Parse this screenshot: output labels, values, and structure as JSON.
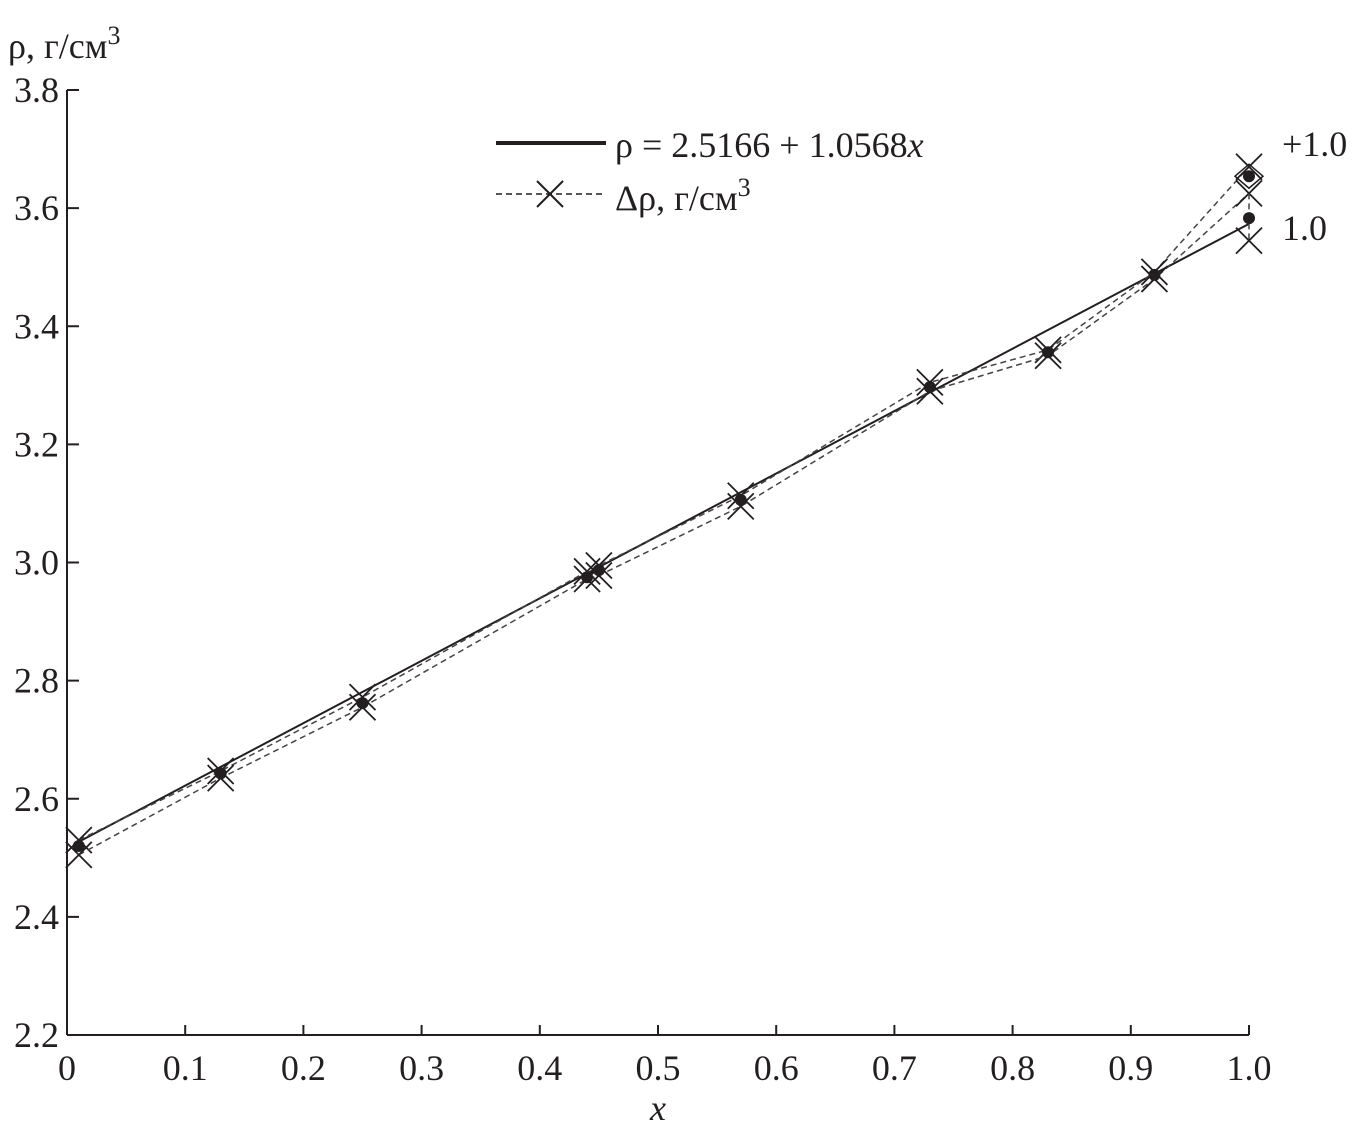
{
  "chart_data": {
    "type": "line",
    "ylabel": "ρ, г/см",
    "ylabel_sup": "3",
    "xlabel": "x",
    "xlim": [
      0,
      1.0
    ],
    "ylim": [
      2.2,
      3.8
    ],
    "xticks": [
      "0",
      "0.1",
      "0.2",
      "0.3",
      "0.4",
      "0.5",
      "0.6",
      "0.7",
      "0.8",
      "0.9",
      "1.0"
    ],
    "yticks": [
      "2.2",
      "2.4",
      "2.6",
      "2.8",
      "3.0",
      "3.2",
      "3.4",
      "3.6",
      "3.8"
    ],
    "grid": false,
    "legend_position": "top-center",
    "legend": {
      "fit_label_prefix": "ρ = 2.5166 + 1.0568",
      "fit_label_var": "x",
      "delta_label": "Δρ, г/см",
      "delta_label_sup": "3"
    },
    "fit": {
      "intercept": 2.5166,
      "slope": 1.0568,
      "x_range": [
        0.01,
        1.0
      ]
    },
    "points": {
      "x": [
        0.01,
        0.13,
        0.25,
        0.44,
        0.45,
        0.57,
        0.73,
        0.83,
        0.92,
        1.0,
        1.0
      ],
      "y": [
        2.52,
        2.643,
        2.762,
        2.975,
        2.987,
        3.106,
        3.297,
        3.356,
        3.487,
        3.583,
        3.654
      ]
    },
    "series": [
      {
        "style": "dashed-cross-upper",
        "x": [
          0.01,
          0.13,
          0.25,
          0.44,
          0.45,
          0.57,
          0.73,
          0.83,
          0.92,
          1.0
        ],
        "y": [
          2.53,
          2.647,
          2.772,
          2.985,
          2.995,
          3.113,
          3.305,
          3.36,
          3.492,
          3.67
        ]
      },
      {
        "style": "dashed-cross-lower",
        "x": [
          0.01,
          0.13,
          0.25,
          0.44,
          0.45,
          0.57,
          0.73,
          0.83,
          0.92,
          1.0
        ],
        "y": [
          2.505,
          2.635,
          2.755,
          2.972,
          2.978,
          3.095,
          3.29,
          3.35,
          3.48,
          3.625
        ]
      }
    ],
    "extra_cross": {
      "x": 1.0,
      "y": 3.545
    },
    "annotations": [
      {
        "text": "+1.0",
        "x": 1.0,
        "y": 3.69
      },
      {
        "text": "1.0",
        "x": 1.0,
        "y": 3.56
      }
    ]
  }
}
